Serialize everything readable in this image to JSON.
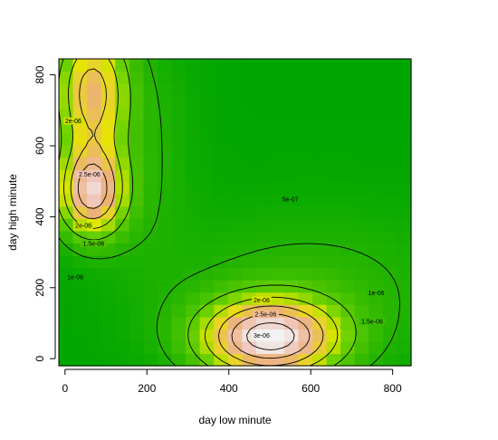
{
  "chart_data": {
    "type": "heatmap",
    "title": "",
    "xlabel": "day low minute",
    "ylabel": "day high minute",
    "xlim": [
      -15,
      845
    ],
    "ylim": [
      -20,
      845
    ],
    "x_ticks": [
      0,
      200,
      400,
      600,
      800
    ],
    "y_ticks": [
      0,
      200,
      400,
      600,
      800
    ],
    "x_tick_labels": [
      "0",
      "200",
      "400",
      "600",
      "800"
    ],
    "y_tick_labels": [
      "0",
      "200",
      "400",
      "600",
      "800"
    ],
    "grid": false,
    "legend": "none",
    "color_palette": "terrain",
    "colors": {
      "low": "#00a600",
      "mid": "#e6e600",
      "high_mid": "#ecb176",
      "peak": "#f2f2f2"
    },
    "density_peaks": [
      {
        "x": 500,
        "y": 60,
        "value": 3.1e-06
      },
      {
        "x": 65,
        "y": 470,
        "value": 2.7e-06
      },
      {
        "x": 65,
        "y": 750,
        "value": 2.2e-06
      }
    ],
    "contour_labels": [
      {
        "text": "3e-06",
        "x": 480,
        "y": 65
      },
      {
        "text": "2.5e-06",
        "x": 490,
        "y": 125
      },
      {
        "text": "2e-06",
        "x": 480,
        "y": 165
      },
      {
        "text": "1.5e-06",
        "x": 750,
        "y": 105
      },
      {
        "text": "1e-06",
        "x": 760,
        "y": 185
      },
      {
        "text": "5e-07",
        "x": 550,
        "y": 450
      },
      {
        "text": "2.5e-06",
        "x": 60,
        "y": 520
      },
      {
        "text": "2e-06",
        "x": 45,
        "y": 375
      },
      {
        "text": "1.5e-06",
        "x": 70,
        "y": 325
      },
      {
        "text": "1e-06",
        "x": 25,
        "y": 230
      },
      {
        "text": "2e-06",
        "x": 20,
        "y": 670
      }
    ]
  }
}
